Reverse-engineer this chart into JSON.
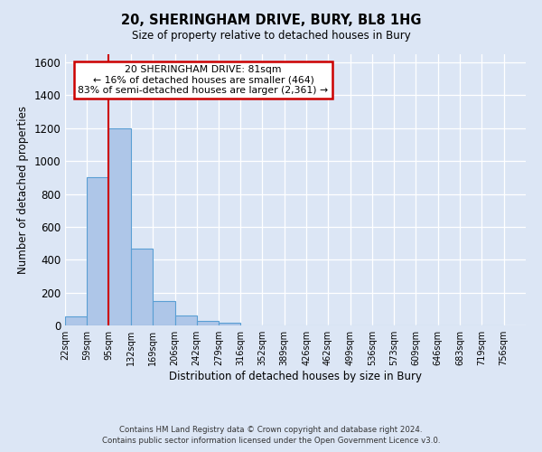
{
  "title": "20, SHERINGHAM DRIVE, BURY, BL8 1HG",
  "subtitle": "Size of property relative to detached houses in Bury",
  "xlabel": "Distribution of detached houses by size in Bury",
  "ylabel": "Number of detached properties",
  "bin_labels": [
    "22sqm",
    "59sqm",
    "95sqm",
    "132sqm",
    "169sqm",
    "206sqm",
    "242sqm",
    "279sqm",
    "316sqm",
    "352sqm",
    "389sqm",
    "426sqm",
    "462sqm",
    "499sqm",
    "536sqm",
    "573sqm",
    "609sqm",
    "646sqm",
    "683sqm",
    "719sqm",
    "756sqm"
  ],
  "bar_heights": [
    55,
    900,
    1200,
    470,
    150,
    60,
    30,
    18,
    0,
    0,
    0,
    0,
    0,
    0,
    0,
    0,
    0,
    0,
    0,
    0
  ],
  "bar_color": "#aec6e8",
  "bar_edgecolor": "#5a9fd4",
  "vline_color": "#cc0000",
  "ylim": [
    0,
    1650
  ],
  "yticks": [
    0,
    200,
    400,
    600,
    800,
    1000,
    1200,
    1400,
    1600
  ],
  "annotation_title": "20 SHERINGHAM DRIVE: 81sqm",
  "annotation_line1": "← 16% of detached houses are smaller (464)",
  "annotation_line2": "83% of semi-detached houses are larger (2,361) →",
  "annotation_box_edgecolor": "#cc0000",
  "footer1": "Contains HM Land Registry data © Crown copyright and database right 2024.",
  "footer2": "Contains public sector information licensed under the Open Government Licence v3.0.",
  "background_color": "#dce6f5",
  "plot_background_color": "#dce6f5",
  "bin_width": 37,
  "vline_pos": 95
}
